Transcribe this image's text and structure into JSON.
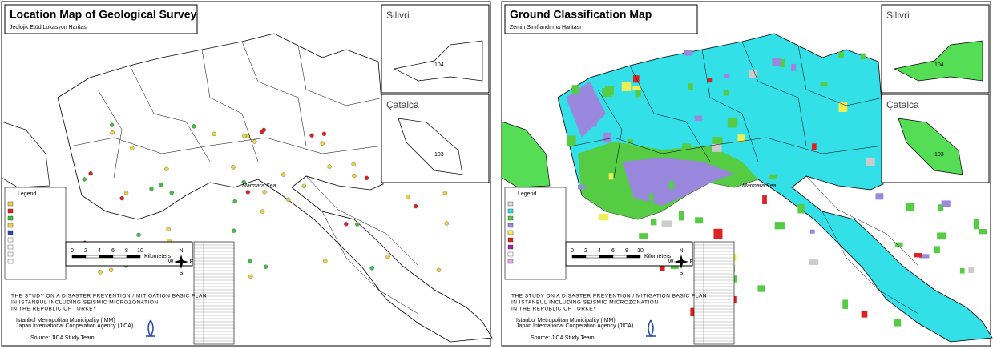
{
  "maps": [
    {
      "title": "Location Map of Geological Survey",
      "subtitle": "Jeolojik Etüd Lokasyon Haritası",
      "insets": [
        {
          "name": "Silivri",
          "district": "104"
        },
        {
          "name": "Çatalca",
          "district": "103"
        }
      ],
      "legend_title": "Legend",
      "sea_label": "Marmara Sea",
      "scale_ticks": [
        "0",
        "2",
        "4",
        "6",
        "8",
        "10"
      ],
      "scale_unit": "Kilometers",
      "compass": [
        "N",
        "S",
        "E",
        "W"
      ],
      "footer": [
        "THE STUDY ON A DISASTER PREVENTION / MITIGATION BASIC PLAN",
        "IN ISTANBUL INCLUDING SEISMIC MICROZONATION",
        "IN THE REPUBLIC OF TURKEY"
      ],
      "agencies": [
        "Istanbul Metropolitan Municipality (IMM)",
        "Japan International Cooperation Agency (JICA)"
      ],
      "source": "Source: JICA Study Team"
    },
    {
      "title": "Ground Classification Map",
      "subtitle": "Zemin Sınıflandırma Haritası",
      "insets": [
        {
          "name": "Silivri",
          "district": "104"
        },
        {
          "name": "Çatalca",
          "district": "103"
        }
      ],
      "legend_title": "Legend",
      "sea_label": "Marmara Sea",
      "scale_ticks": [
        "0",
        "2",
        "4",
        "6",
        "8",
        "10"
      ],
      "scale_unit": "Kilometers",
      "compass": [
        "N",
        "S",
        "E",
        "W"
      ],
      "footer": [
        "THE STUDY ON A DISASTER PREVENTION / MITIGATION BASIC PLAN",
        "IN ISTANBUL INCLUDING SEISMIC MICROZONATION",
        "IN THE REPUBLIC OF TURKEY"
      ],
      "agencies": [
        "Istanbul Metropolitan Municipality (IMM)",
        "Japan International Cooperation Agency (JICA)"
      ],
      "source": "Source: JICA Study Team"
    }
  ]
}
